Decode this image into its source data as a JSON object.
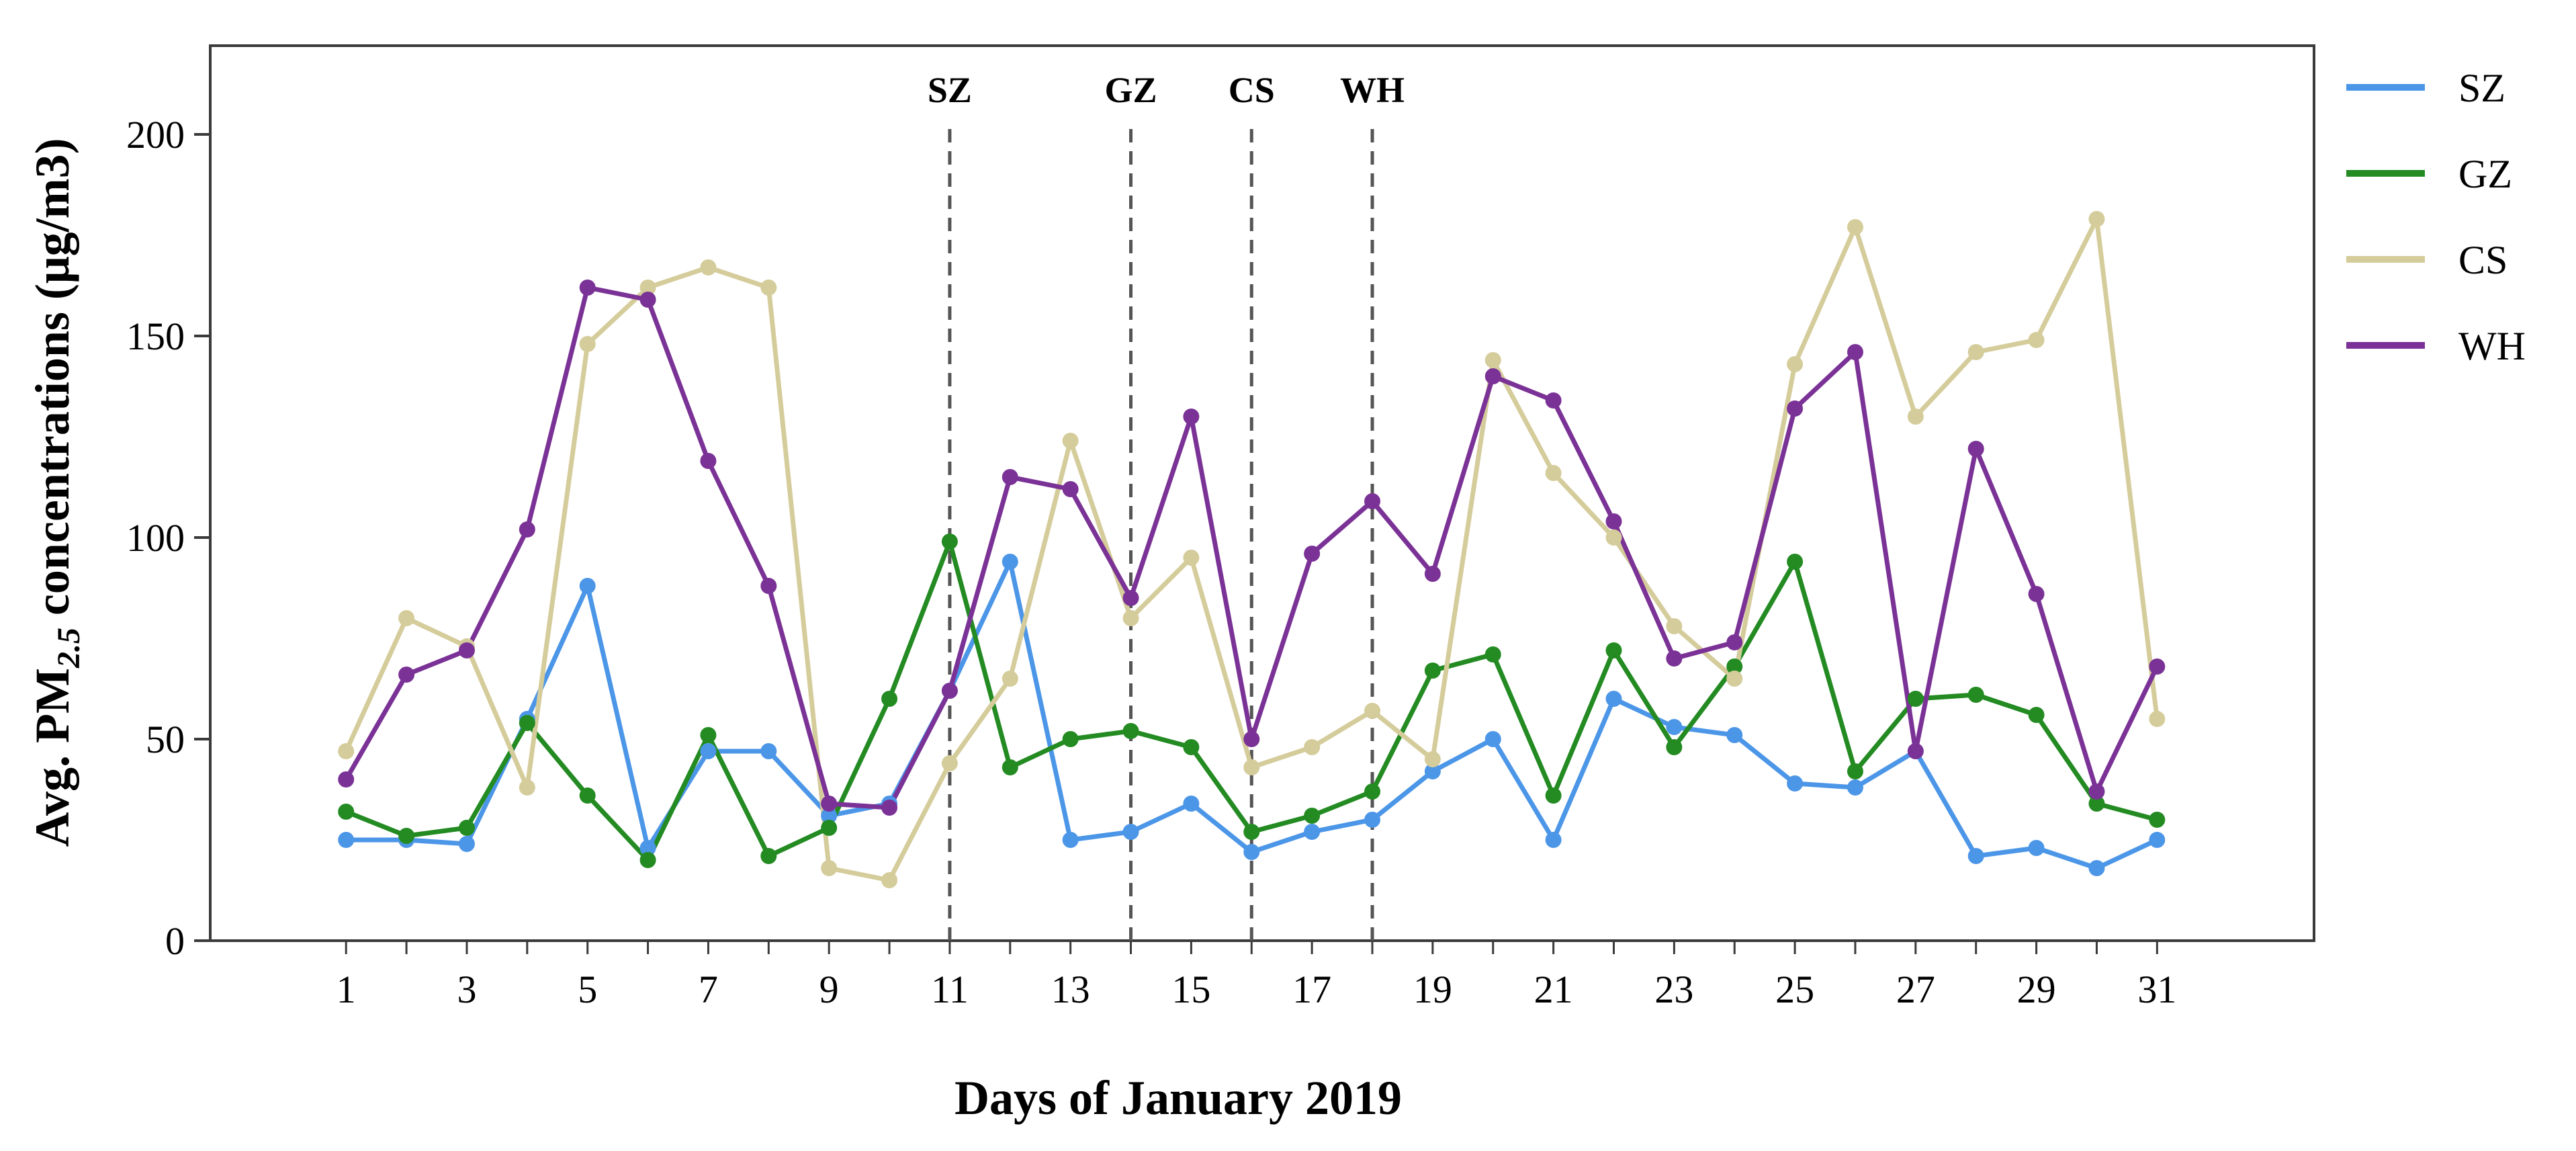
{
  "chart_data": {
    "type": "line",
    "title": "",
    "xlabel": "Days of January 2019",
    "ylabel": {
      "prefix": "Avg. PM",
      "subscript": "2.5",
      "suffix": " concentrations (μg/m3)"
    },
    "xlim": [
      -1.25,
      33.6
    ],
    "ylim": [
      0,
      222
    ],
    "x_ticks": [
      1,
      3,
      5,
      7,
      9,
      11,
      13,
      15,
      17,
      19,
      21,
      23,
      25,
      27,
      29,
      31
    ],
    "y_ticks": [
      0,
      50,
      100,
      150,
      200
    ],
    "grid": false,
    "legend_position": "right",
    "x": [
      1,
      2,
      3,
      4,
      5,
      6,
      7,
      8,
      9,
      10,
      11,
      12,
      13,
      14,
      15,
      16,
      17,
      18,
      19,
      20,
      21,
      22,
      23,
      24,
      25,
      26,
      27,
      28,
      29,
      30,
      31
    ],
    "series": [
      {
        "name": "SZ",
        "color": "#4c96e8",
        "values": [
          25,
          25,
          24,
          55,
          88,
          23,
          47,
          47,
          31,
          34,
          62,
          94,
          25,
          27,
          34,
          22,
          27,
          30,
          42,
          50,
          25,
          60,
          53,
          51,
          39,
          38,
          47,
          21,
          23,
          18,
          25
        ]
      },
      {
        "name": "GZ",
        "color": "#238b22",
        "values": [
          32,
          26,
          28,
          54,
          36,
          20,
          51,
          21,
          28,
          60,
          99,
          43,
          50,
          52,
          48,
          27,
          31,
          37,
          67,
          71,
          36,
          72,
          48,
          68,
          94,
          42,
          60,
          61,
          56,
          34,
          30
        ]
      },
      {
        "name": "CS",
        "color": "#d5cc9b",
        "values": [
          47,
          80,
          73,
          38,
          148,
          162,
          167,
          162,
          18,
          15,
          44,
          65,
          124,
          80,
          95,
          43,
          48,
          57,
          45,
          144,
          116,
          100,
          78,
          65,
          143,
          177,
          130,
          146,
          149,
          179,
          55
        ]
      },
      {
        "name": "WH",
        "color": "#7b3296",
        "values": [
          40,
          66,
          72,
          102,
          162,
          159,
          119,
          88,
          34,
          33,
          62,
          115,
          112,
          85,
          130,
          50,
          96,
          109,
          91,
          140,
          134,
          104,
          70,
          74,
          132,
          146,
          47,
          122,
          86,
          37,
          68
        ]
      }
    ],
    "event_lines": [
      {
        "label": "SZ",
        "x": 11
      },
      {
        "label": "GZ",
        "x": 14
      },
      {
        "label": "CS",
        "x": 16
      },
      {
        "label": "WH",
        "x": 18
      }
    ]
  }
}
